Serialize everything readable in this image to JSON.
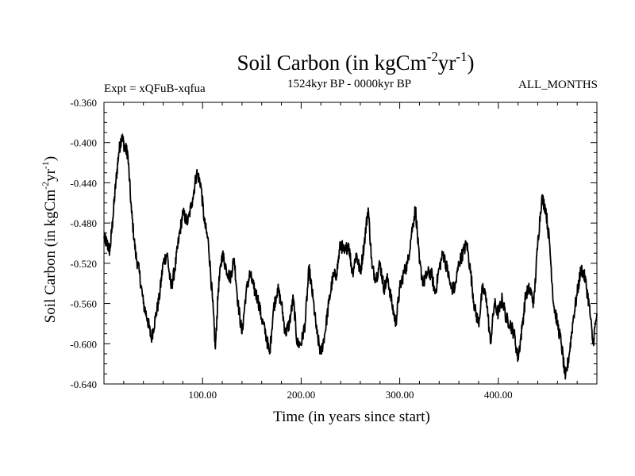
{
  "chart_data": {
    "type": "line",
    "title": {
      "main": "Soil Carbon (in kgCm",
      "sup1": "-2",
      "mid": "yr",
      "sup2": "-1",
      "end": ")"
    },
    "header_left": "Expt = xQFuB-xqfua",
    "header_center": "1524kyr BP - 0000kyr BP",
    "header_right": "ALL_MONTHS",
    "xlabel": "Time (in years since start)",
    "ylabel": {
      "main": "Soil Carbon (in kgCm",
      "sup1": "-2",
      "mid": "yr",
      "sup2": "-1",
      "end": ")"
    },
    "xlim": [
      0,
      500
    ],
    "ylim": [
      -0.64,
      -0.36
    ],
    "x_ticks": [
      100,
      200,
      300,
      400
    ],
    "x_tick_labels": [
      "100.00",
      "200.00",
      "300.00",
      "400.00"
    ],
    "y_ticks": [
      -0.36,
      -0.4,
      -0.44,
      -0.48,
      -0.52,
      -0.56,
      -0.6,
      -0.64
    ],
    "y_tick_labels": [
      "-0.360",
      "-0.400",
      "-0.440",
      "-0.480",
      "-0.520",
      "-0.560",
      "-0.600",
      "-0.640"
    ],
    "series": [
      {
        "color": "#000000",
        "x": [
          0,
          3,
          6,
          9,
          12,
          15,
          18,
          21,
          24,
          28,
          32,
          36,
          40,
          44,
          48,
          52,
          56,
          60,
          64,
          68,
          72,
          76,
          80,
          85,
          90,
          94,
          98,
          102,
          106,
          110,
          113,
          116,
          120,
          124,
          128,
          132,
          136,
          140,
          144,
          148,
          152,
          156,
          160,
          164,
          168,
          172,
          176,
          180,
          184,
          188,
          192,
          196,
          200,
          204,
          208,
          212,
          216,
          220,
          224,
          228,
          232,
          236,
          240,
          244,
          248,
          252,
          256,
          260,
          264,
          268,
          272,
          276,
          280,
          284,
          288,
          292,
          296,
          300,
          304,
          308,
          312,
          316,
          320,
          324,
          328,
          332,
          336,
          340,
          344,
          348,
          352,
          356,
          360,
          364,
          368,
          372,
          376,
          380,
          384,
          388,
          392,
          396,
          400,
          404,
          408,
          412,
          416,
          420,
          424,
          428,
          432,
          436,
          440,
          444,
          448,
          452,
          456,
          460,
          464,
          468,
          472,
          476,
          480,
          484,
          488,
          492,
          496,
          500
        ],
        "y": [
          -0.495,
          -0.5,
          -0.508,
          -0.475,
          -0.44,
          -0.41,
          -0.393,
          -0.405,
          -0.41,
          -0.47,
          -0.51,
          -0.53,
          -0.56,
          -0.575,
          -0.595,
          -0.575,
          -0.555,
          -0.52,
          -0.51,
          -0.545,
          -0.525,
          -0.495,
          -0.47,
          -0.48,
          -0.455,
          -0.43,
          -0.44,
          -0.48,
          -0.5,
          -0.555,
          -0.605,
          -0.545,
          -0.51,
          -0.525,
          -0.535,
          -0.515,
          -0.56,
          -0.59,
          -0.55,
          -0.53,
          -0.545,
          -0.555,
          -0.575,
          -0.59,
          -0.61,
          -0.565,
          -0.545,
          -0.56,
          -0.59,
          -0.58,
          -0.555,
          -0.6,
          -0.6,
          -0.58,
          -0.525,
          -0.555,
          -0.59,
          -0.61,
          -0.59,
          -0.56,
          -0.535,
          -0.53,
          -0.5,
          -0.51,
          -0.5,
          -0.53,
          -0.51,
          -0.53,
          -0.5,
          -0.465,
          -0.525,
          -0.535,
          -0.52,
          -0.545,
          -0.535,
          -0.56,
          -0.58,
          -0.545,
          -0.53,
          -0.52,
          -0.49,
          -0.465,
          -0.52,
          -0.54,
          -0.53,
          -0.53,
          -0.55,
          -0.525,
          -0.51,
          -0.525,
          -0.545,
          -0.545,
          -0.52,
          -0.51,
          -0.5,
          -0.53,
          -0.565,
          -0.58,
          -0.545,
          -0.555,
          -0.6,
          -0.56,
          -0.57,
          -0.555,
          -0.575,
          -0.58,
          -0.59,
          -0.615,
          -0.585,
          -0.55,
          -0.545,
          -0.56,
          -0.5,
          -0.455,
          -0.465,
          -0.5,
          -0.56,
          -0.58,
          -0.6,
          -0.635,
          -0.61,
          -0.575,
          -0.55,
          -0.525,
          -0.535,
          -0.56,
          -0.6,
          -0.57
        ]
      }
    ]
  }
}
